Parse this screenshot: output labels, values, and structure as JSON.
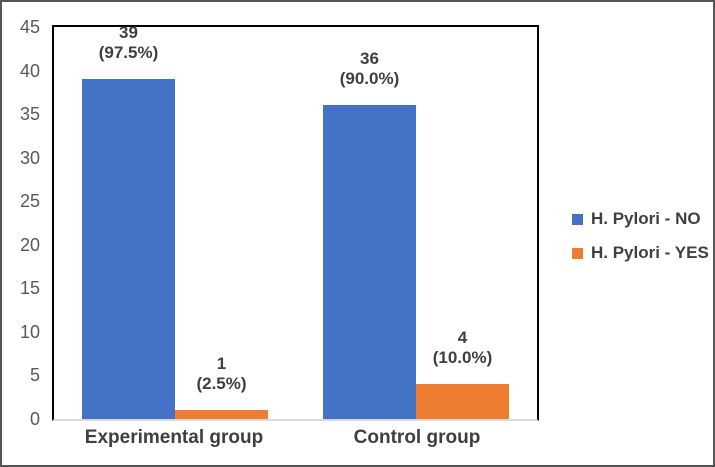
{
  "chart_data": {
    "type": "bar",
    "title": "",
    "xlabel": "",
    "ylabel": "",
    "categories": [
      "Experimental group",
      "Control group"
    ],
    "series": [
      {
        "name": "H. Pylori - NO",
        "color": "#4472C4",
        "values": [
          39,
          36
        ],
        "data_labels": [
          [
            "39",
            "(97.5%)"
          ],
          [
            "36",
            "(90.0%)"
          ]
        ]
      },
      {
        "name": "H. Pylori - YES",
        "color": "#ED7D31",
        "values": [
          1,
          4
        ],
        "data_labels": [
          [
            "1",
            "(2.5%)"
          ],
          [
            "4",
            "(10.0%)"
          ]
        ]
      }
    ],
    "ylim": [
      0,
      45
    ],
    "yticks": [
      0,
      5,
      10,
      15,
      20,
      25,
      30,
      35,
      40,
      45
    ],
    "grid": false,
    "legend_position": "right",
    "colors": {
      "axis_text": "#595959",
      "label_text": "#3f3f3f",
      "plot_border": "#000000",
      "baseline": "#d9d9d9"
    }
  }
}
